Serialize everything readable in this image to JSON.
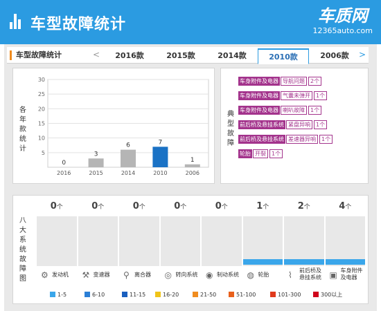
{
  "header": {
    "title": "车型故障统计",
    "logo": "车质网",
    "logo_url": "12365auto.com"
  },
  "tabs": {
    "title": "车型故障统计",
    "prev": "<",
    "next": ">",
    "items": [
      "2016款",
      "2015款",
      "2014款",
      "2010款",
      "2006款"
    ],
    "active": "2010款"
  },
  "chart_side_label": "各年款统计",
  "chart_data": {
    "type": "bar",
    "categories": [
      "2016",
      "2015",
      "2014",
      "2010",
      "2006"
    ],
    "values": [
      0,
      3,
      6,
      7,
      1
    ],
    "highlight": "2010",
    "ylim": [
      0,
      30
    ],
    "yticks": [
      5,
      10,
      15,
      20,
      25,
      30
    ],
    "colors": {
      "normal": "#b5b5b5",
      "highlight": "#1a72c5"
    }
  },
  "fault_side_label": "典型故障",
  "faults": [
    {
      "cat": "车身附件及电器",
      "name": "导航问题",
      "count": "2个"
    },
    {
      "cat": "车身附件及电器",
      "name": "气囊未弹开",
      "count": "1个"
    },
    {
      "cat": "车身附件及电器",
      "name": "喇叭故障",
      "count": "1个"
    },
    {
      "cat": "前后桥及悬挂系统",
      "name": "紧盘异响",
      "count": "1个"
    },
    {
      "cat": "前后桥及悬挂系统",
      "name": "差速器异响",
      "count": "1个"
    },
    {
      "cat": "轮胎",
      "name": "开裂",
      "count": "1个"
    }
  ],
  "sys_side_label": "八大系统故障图",
  "systems": [
    {
      "count": "0",
      "unit": "个",
      "name": "发动机",
      "icon": "engine-icon",
      "glyph": "⚙",
      "bar": false
    },
    {
      "count": "0",
      "unit": "个",
      "name": "变速器",
      "icon": "gearbox-icon",
      "glyph": "⚒",
      "bar": false
    },
    {
      "count": "0",
      "unit": "个",
      "name": "离合器",
      "icon": "clutch-icon",
      "glyph": "⚲",
      "bar": false
    },
    {
      "count": "0",
      "unit": "个",
      "name": "转向系统",
      "icon": "steering-icon",
      "glyph": "◎",
      "bar": false
    },
    {
      "count": "0",
      "unit": "个",
      "name": "制动系统",
      "icon": "brake-icon",
      "glyph": "◉",
      "bar": false
    },
    {
      "count": "1",
      "unit": "个",
      "name": "轮胎",
      "icon": "tire-icon",
      "glyph": "◍",
      "bar": true
    },
    {
      "count": "2",
      "unit": "个",
      "name": "前后桥及悬挂系统",
      "icon": "suspension-icon",
      "glyph": "⌇",
      "bar": true
    },
    {
      "count": "4",
      "unit": "个",
      "name": "车身附件及电器",
      "icon": "body-electrical-icon",
      "glyph": "▣",
      "bar": true
    }
  ],
  "legend": [
    {
      "label": "1-5",
      "color": "#3aa6ea"
    },
    {
      "label": "6-10",
      "color": "#2b7fd6"
    },
    {
      "label": "11-15",
      "color": "#1a5fbf"
    },
    {
      "label": "16-20",
      "color": "#f0c419"
    },
    {
      "label": "21-50",
      "color": "#f08c1f"
    },
    {
      "label": "51-100",
      "color": "#e8601c"
    },
    {
      "label": "101-300",
      "color": "#e03a1c"
    },
    {
      "label": "300以上",
      "color": "#d0021b"
    }
  ]
}
